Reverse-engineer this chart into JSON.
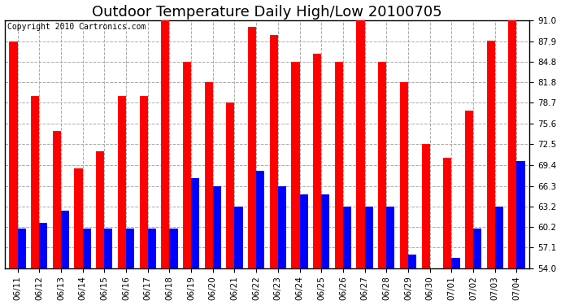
{
  "title": "Outdoor Temperature Daily High/Low 20100705",
  "copyright": "Copyright 2010 Cartronics.com",
  "categories": [
    "06/11",
    "06/12",
    "06/13",
    "06/14",
    "06/15",
    "06/16",
    "06/17",
    "06/18",
    "06/19",
    "06/20",
    "06/21",
    "06/22",
    "06/23",
    "06/24",
    "06/25",
    "06/26",
    "06/27",
    "06/28",
    "06/29",
    "06/30",
    "07/01",
    "07/02",
    "07/03",
    "07/04"
  ],
  "highs": [
    87.9,
    79.7,
    74.5,
    68.9,
    71.5,
    79.7,
    79.7,
    91.9,
    84.8,
    81.8,
    78.7,
    90.0,
    88.8,
    84.8,
    86.0,
    84.8,
    91.0,
    84.8,
    81.8,
    72.5,
    70.5,
    77.5,
    88.0,
    91.0
  ],
  "lows": [
    59.9,
    60.8,
    62.6,
    59.9,
    59.9,
    59.9,
    59.9,
    59.9,
    67.5,
    66.3,
    63.2,
    68.5,
    66.3,
    65.0,
    65.0,
    63.2,
    63.2,
    63.2,
    56.0,
    54.0,
    55.5,
    59.9,
    63.2,
    70.0
  ],
  "high_color": "#ff0000",
  "low_color": "#0000ff",
  "bg_color": "#ffffff",
  "grid_color": "#aaaaaa",
  "ylim_min": 54.0,
  "ylim_max": 91.0,
  "yticks": [
    54.0,
    57.1,
    60.2,
    63.2,
    66.3,
    69.4,
    72.5,
    75.6,
    78.7,
    81.8,
    84.8,
    87.9,
    91.0
  ],
  "bar_width": 0.38,
  "title_fontsize": 13,
  "tick_fontsize": 7.5,
  "copyright_fontsize": 7
}
